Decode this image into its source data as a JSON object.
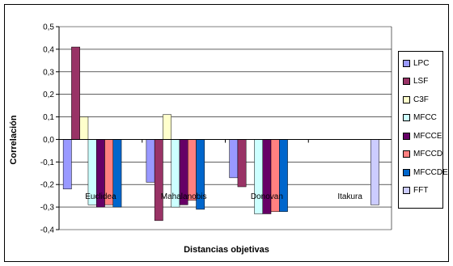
{
  "chart_data": {
    "type": "bar",
    "title": "",
    "xlabel": "Distancias objetivas",
    "ylabel": "Correlación",
    "ylim": [
      -0.4,
      0.5
    ],
    "ytick_step": 0.1,
    "grid": true,
    "legend_position": "right",
    "categories": [
      "Euclidea",
      "Mahalanobis",
      "Donovan",
      "Itakura"
    ],
    "series": [
      {
        "name": "LPC",
        "color": "#9999ff",
        "values": [
          -0.22,
          -0.19,
          -0.17,
          null
        ]
      },
      {
        "name": "LSF",
        "color": "#993366",
        "values": [
          0.41,
          -0.36,
          -0.21,
          null
        ]
      },
      {
        "name": "C3F",
        "color": "#ffffcc",
        "values": [
          0.1,
          0.11,
          null,
          null
        ]
      },
      {
        "name": "MFCC",
        "color": "#ccffff",
        "values": [
          -0.29,
          -0.3,
          -0.33,
          null
        ]
      },
      {
        "name": "MFCCE",
        "color": "#660066",
        "values": [
          -0.3,
          -0.29,
          -0.33,
          null
        ]
      },
      {
        "name": "MFCCD",
        "color": "#ff8080",
        "values": [
          -0.29,
          -0.27,
          -0.32,
          null
        ]
      },
      {
        "name": "MFCCDE",
        "color": "#0066cc",
        "values": [
          -0.3,
          -0.31,
          -0.32,
          null
        ]
      },
      {
        "name": "FFT",
        "color": "#ccccff",
        "values": [
          null,
          null,
          null,
          -0.29
        ]
      }
    ]
  }
}
